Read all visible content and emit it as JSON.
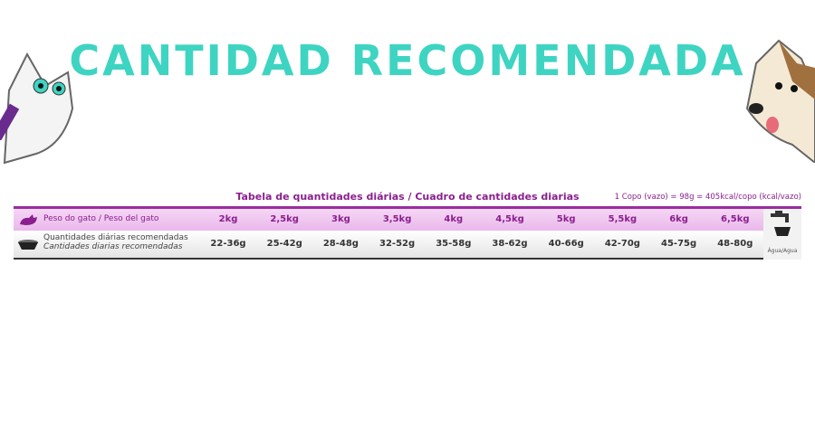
{
  "header": {
    "title": "CANTIDAD RECOMENDADA"
  },
  "table": {
    "caption": "Tabela de quantidades diárias / Cuadro de cantidades diarias",
    "note": "1 Copo (vazo) = 98g = 405kcal/copo (kcal/vazo)",
    "rows": [
      {
        "label": "Peso do gato / Peso del gato",
        "cells": [
          "2kg",
          "2,5kg",
          "3kg",
          "3,5kg",
          "4kg",
          "4,5kg",
          "5kg",
          "5,5kg",
          "6kg",
          "6,5kg"
        ]
      },
      {
        "label": [
          "Quantidades diárias recomendadas",
          "Cantidades diarias recomendadas"
        ],
        "cells": [
          "22-36g",
          "25-42g",
          "28-48g",
          "32-52g",
          "35-58g",
          "38-62g",
          "40-66g",
          "42-70g",
          "45-75g",
          "48-80g"
        ]
      }
    ],
    "water": "Água/Agua"
  }
}
